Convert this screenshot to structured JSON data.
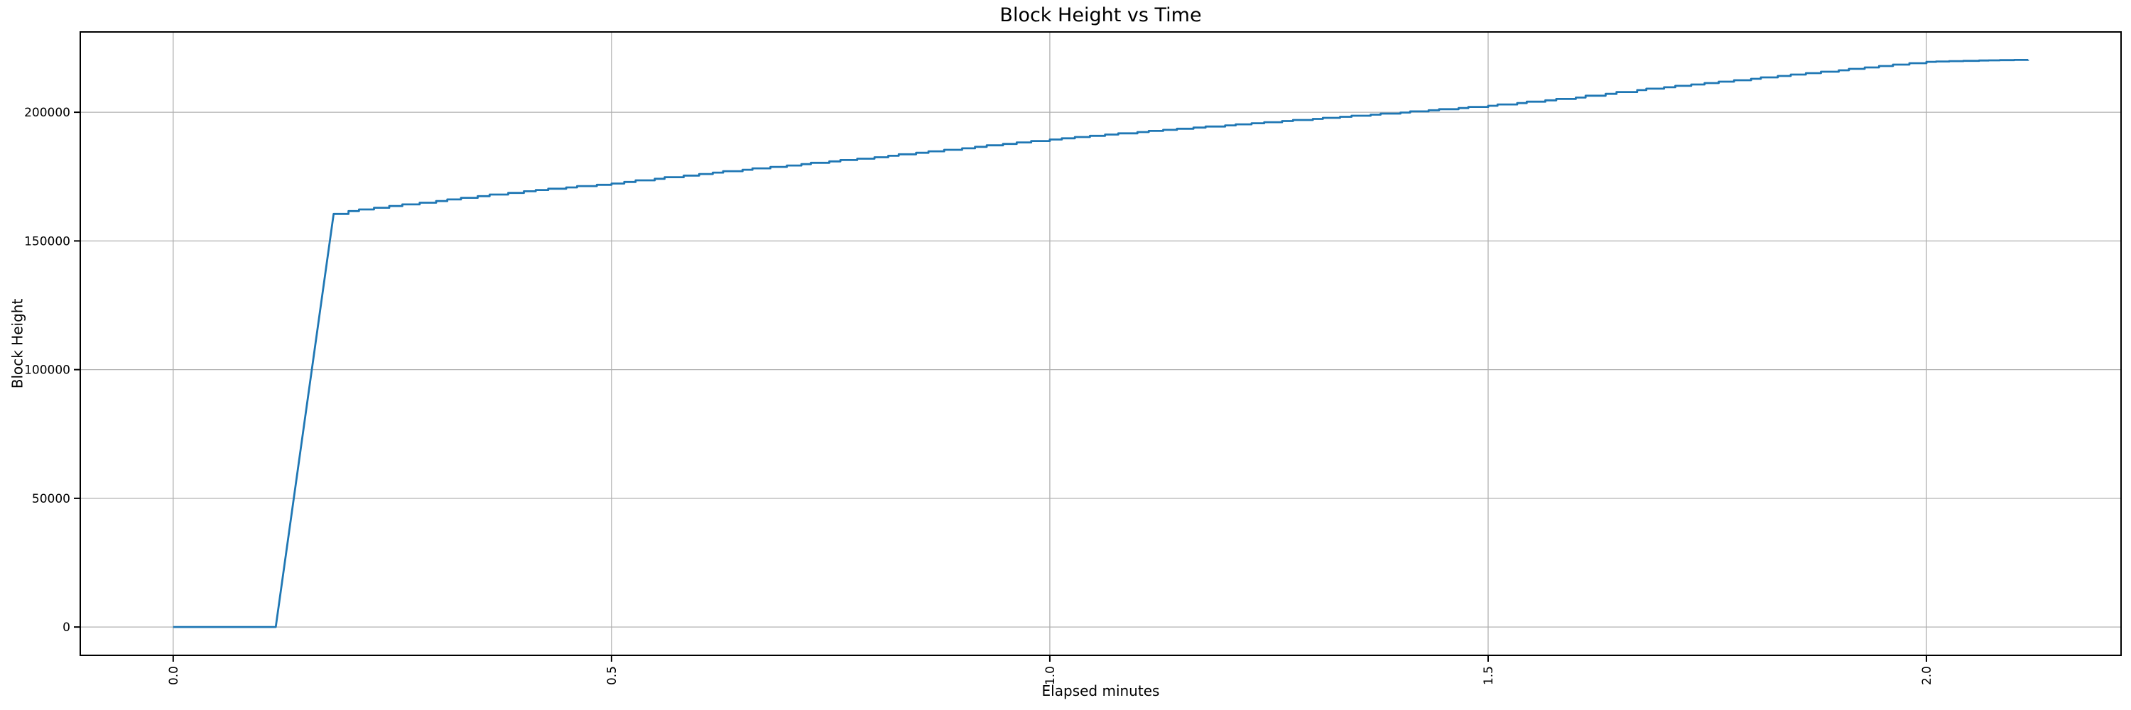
{
  "chart_data": {
    "type": "line",
    "title": "Block Height vs Time",
    "xlabel": "Elapsed minutes",
    "ylabel": "Block Height",
    "grid": true,
    "grid_color": "#b0b0b0",
    "background_color": "#ffffff",
    "line_color": "#1f77b4",
    "xlim": [
      -0.106,
      2.222
    ],
    "ylim": [
      -11000,
      231200
    ],
    "x_ticks": {
      "values": [
        0.0,
        0.5,
        1.0,
        1.5,
        2.0
      ],
      "labels": [
        "0.0",
        "0.5",
        "1.0",
        "1.5",
        "2.0"
      ],
      "rotation_deg": 90
    },
    "y_ticks": {
      "values": [
        0,
        50000,
        100000,
        150000,
        200000
      ],
      "labels": [
        "0",
        "50000",
        "100000",
        "150000",
        "200000"
      ]
    },
    "series": [
      {
        "name": "block-height",
        "points": [
          [
            0.0,
            0
          ],
          [
            0.117,
            0
          ],
          [
            0.183,
            160500
          ],
          [
            0.2,
            161600
          ],
          [
            0.3,
            165500
          ],
          [
            0.4,
            169300
          ],
          [
            0.5,
            172300
          ],
          [
            0.6,
            176000
          ],
          [
            0.7,
            179300
          ],
          [
            0.8,
            182500
          ],
          [
            0.9,
            186000
          ],
          [
            1.0,
            189400
          ],
          [
            1.1,
            192300
          ],
          [
            1.2,
            194900
          ],
          [
            1.3,
            197400
          ],
          [
            1.4,
            199900
          ],
          [
            1.5,
            202500
          ],
          [
            1.6,
            205700
          ],
          [
            1.67,
            208600
          ],
          [
            1.8,
            213000
          ],
          [
            1.9,
            216300
          ],
          [
            2.0,
            219600
          ],
          [
            2.06,
            220100
          ],
          [
            2.116,
            220400
          ]
        ]
      }
    ],
    "step_render": {
      "interval_min": 0.016,
      "steep_slope_threshold": 500000
    }
  }
}
